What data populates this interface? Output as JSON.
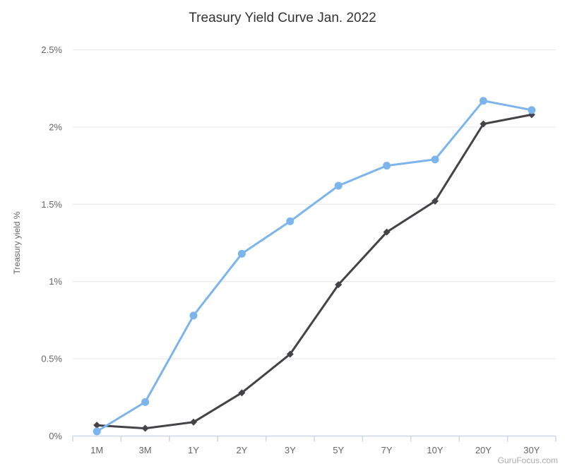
{
  "page": {
    "background": "#ffffff"
  },
  "chart_data": {
    "type": "line",
    "title": "Treasury Yield Curve Jan. 2022",
    "xlabel": "",
    "ylabel": "Treasury yield %",
    "categories": [
      "1M",
      "3M",
      "1Y",
      "2Y",
      "3Y",
      "5Y",
      "7Y",
      "10Y",
      "20Y",
      "30Y"
    ],
    "series": [
      {
        "name": "blue",
        "color": "#7cb5ec",
        "marker": "circle",
        "values": [
          0.03,
          0.22,
          0.78,
          1.18,
          1.39,
          1.62,
          1.75,
          1.79,
          2.17,
          2.11
        ]
      },
      {
        "name": "black",
        "color": "#434348",
        "marker": "diamond",
        "values": [
          0.07,
          0.05,
          0.09,
          0.28,
          0.53,
          0.98,
          1.32,
          1.52,
          2.02,
          2.08
        ]
      }
    ],
    "ylim": [
      0,
      2.5
    ],
    "y_ticks": [
      {
        "value": 0,
        "label": "0%"
      },
      {
        "value": 0.5,
        "label": "0.5%"
      },
      {
        "value": 1,
        "label": "1%"
      },
      {
        "value": 1.5,
        "label": "1.5%"
      },
      {
        "value": 2,
        "label": "2%"
      },
      {
        "value": 2.5,
        "label": "2.5%"
      }
    ],
    "grid": "horizontal",
    "legend": "none",
    "grid_color": "#e6e6e6",
    "axis_line_color": "#ccd6eb",
    "label_color": "#666666",
    "title_color": "#333333",
    "watermark": "GuruFocus.com"
  }
}
